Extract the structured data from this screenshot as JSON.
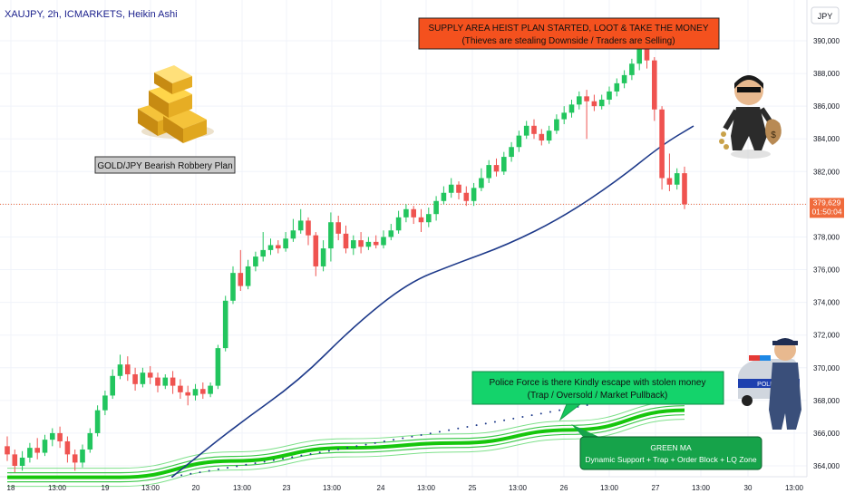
{
  "header": {
    "symbol_line": "XAUJPY, 2h, ICMARKETS, Heikin Ashi"
  },
  "price_axis": {
    "currency": "JPY",
    "ticks": [
      "390,000",
      "388,000",
      "386,000",
      "384,000",
      "382,000",
      "380,000",
      "378,000",
      "376,000",
      "374,000",
      "372,000",
      "370,000",
      "368,000",
      "366,000",
      "364,000"
    ],
    "last_price": "379,629",
    "countdown": "01:50:04"
  },
  "colors": {
    "up": "#26a69a",
    "up_bright": "#22c55e",
    "down": "#ef5350",
    "ma_blue": "#1e3a8a",
    "ma_green": "#16c60c",
    "last_price": "#f06b3c"
  },
  "annotations": {
    "supply": {
      "line1": "SUPPLY AREA HEIST PLAN STARTED, LOOT & TAKE THE MONEY",
      "line2": "(Thieves are stealing Downside / Traders are Selling)"
    },
    "title_box": "GOLD/JPY Bearish Robbery Plan",
    "police": {
      "line1": "Police Force is there Kindly escape with stolen money",
      "line2": "(Trap / Oversold / Market Pullback)"
    },
    "green_ma": {
      "line1": "GREEN MA",
      "line2": "Dynamic Support + Trap + Order Block + LQ Zone"
    }
  },
  "chart_data": {
    "type": "candlestick",
    "title": "XAUJPY, 2h, ICMARKETS, Heikin Ashi",
    "ylim": [
      363000,
      391000
    ],
    "x_ticks": [
      "18",
      "13:00",
      "19",
      "13:00",
      "20",
      "13:00",
      "23",
      "13:00",
      "24",
      "13:00",
      "25",
      "13:00",
      "26",
      "13:00",
      "27",
      "13:00",
      "30",
      "13:00"
    ],
    "candles": [
      {
        "o": 365200,
        "c": 364700,
        "h": 365800,
        "l": 364300
      },
      {
        "o": 364700,
        "c": 364000,
        "h": 365000,
        "l": 363600
      },
      {
        "o": 364000,
        "c": 364500,
        "h": 364900,
        "l": 363700
      },
      {
        "o": 364500,
        "c": 365100,
        "h": 365400,
        "l": 364200
      },
      {
        "o": 365100,
        "c": 364800,
        "h": 365700,
        "l": 364400
      },
      {
        "o": 364800,
        "c": 365600,
        "h": 365900,
        "l": 364600
      },
      {
        "o": 365600,
        "c": 366000,
        "h": 366300,
        "l": 365200
      },
      {
        "o": 366000,
        "c": 365500,
        "h": 366400,
        "l": 365100
      },
      {
        "o": 365500,
        "c": 364700,
        "h": 365800,
        "l": 364200
      },
      {
        "o": 364700,
        "c": 364200,
        "h": 365000,
        "l": 363700
      },
      {
        "o": 364200,
        "c": 365000,
        "h": 365300,
        "l": 363900
      },
      {
        "o": 365000,
        "c": 366000,
        "h": 366300,
        "l": 364800
      },
      {
        "o": 366000,
        "c": 367400,
        "h": 367700,
        "l": 365800
      },
      {
        "o": 367400,
        "c": 368300,
        "h": 368600,
        "l": 367100
      },
      {
        "o": 368300,
        "c": 369500,
        "h": 369900,
        "l": 368100
      },
      {
        "o": 369500,
        "c": 370200,
        "h": 370800,
        "l": 369300
      },
      {
        "o": 370200,
        "c": 369600,
        "h": 370700,
        "l": 369200
      },
      {
        "o": 369600,
        "c": 369000,
        "h": 370000,
        "l": 368600
      },
      {
        "o": 369000,
        "c": 369700,
        "h": 370000,
        "l": 368800
      },
      {
        "o": 369700,
        "c": 369400,
        "h": 370100,
        "l": 369000
      },
      {
        "o": 369400,
        "c": 368900,
        "h": 369700,
        "l": 368500
      },
      {
        "o": 368900,
        "c": 369400,
        "h": 369600,
        "l": 368700
      },
      {
        "o": 369400,
        "c": 368900,
        "h": 369800,
        "l": 368400
      },
      {
        "o": 368900,
        "c": 368500,
        "h": 369300,
        "l": 368100
      },
      {
        "o": 368500,
        "c": 368300,
        "h": 368900,
        "l": 367700
      },
      {
        "o": 368300,
        "c": 368700,
        "h": 369000,
        "l": 368000
      },
      {
        "o": 368700,
        "c": 368400,
        "h": 369100,
        "l": 368100
      },
      {
        "o": 368400,
        "c": 368900,
        "h": 369100,
        "l": 368200
      },
      {
        "o": 368900,
        "c": 371200,
        "h": 371400,
        "l": 368700
      },
      {
        "o": 371200,
        "c": 374100,
        "h": 374400,
        "l": 371000
      },
      {
        "o": 374100,
        "c": 375800,
        "h": 376200,
        "l": 373900
      },
      {
        "o": 375800,
        "c": 375000,
        "h": 377200,
        "l": 374700
      },
      {
        "o": 375000,
        "c": 376200,
        "h": 376600,
        "l": 374800
      },
      {
        "o": 376200,
        "c": 376800,
        "h": 377100,
        "l": 375900
      },
      {
        "o": 376800,
        "c": 377200,
        "h": 378300,
        "l": 376500
      },
      {
        "o": 377200,
        "c": 377500,
        "h": 377900,
        "l": 376900
      },
      {
        "o": 377500,
        "c": 377300,
        "h": 377800,
        "l": 377000
      },
      {
        "o": 377300,
        "c": 377900,
        "h": 378300,
        "l": 377100
      },
      {
        "o": 377900,
        "c": 378400,
        "h": 379100,
        "l": 377700
      },
      {
        "o": 378400,
        "c": 379000,
        "h": 379700,
        "l": 378200
      },
      {
        "o": 379000,
        "c": 378100,
        "h": 379200,
        "l": 377500
      },
      {
        "o": 378100,
        "c": 376200,
        "h": 378300,
        "l": 375600
      },
      {
        "o": 376200,
        "c": 377300,
        "h": 377800,
        "l": 375900
      },
      {
        "o": 377300,
        "c": 378900,
        "h": 379500,
        "l": 376500
      },
      {
        "o": 378900,
        "c": 378200,
        "h": 379300,
        "l": 377800
      },
      {
        "o": 378200,
        "c": 377300,
        "h": 378700,
        "l": 377000
      },
      {
        "o": 377300,
        "c": 377800,
        "h": 378100,
        "l": 376900
      },
      {
        "o": 377800,
        "c": 377400,
        "h": 378300,
        "l": 377000
      },
      {
        "o": 377400,
        "c": 377700,
        "h": 378000,
        "l": 377200
      },
      {
        "o": 377700,
        "c": 377500,
        "h": 378100,
        "l": 377300
      },
      {
        "o": 377500,
        "c": 378000,
        "h": 378400,
        "l": 377300
      },
      {
        "o": 378000,
        "c": 378400,
        "h": 378800,
        "l": 377800
      },
      {
        "o": 378400,
        "c": 379200,
        "h": 379600,
        "l": 378200
      },
      {
        "o": 379200,
        "c": 379700,
        "h": 380000,
        "l": 378900
      },
      {
        "o": 379700,
        "c": 379200,
        "h": 379900,
        "l": 378800
      },
      {
        "o": 379200,
        "c": 378900,
        "h": 379700,
        "l": 378300
      },
      {
        "o": 378900,
        "c": 379400,
        "h": 379800,
        "l": 378600
      },
      {
        "o": 379400,
        "c": 380200,
        "h": 380500,
        "l": 379000
      },
      {
        "o": 380200,
        "c": 380700,
        "h": 381100,
        "l": 380000
      },
      {
        "o": 380700,
        "c": 381200,
        "h": 381600,
        "l": 380400
      },
      {
        "o": 381200,
        "c": 380700,
        "h": 381400,
        "l": 380300
      },
      {
        "o": 380700,
        "c": 380200,
        "h": 381100,
        "l": 379900
      },
      {
        "o": 380200,
        "c": 381000,
        "h": 381300,
        "l": 379900
      },
      {
        "o": 381000,
        "c": 381600,
        "h": 382200,
        "l": 380800
      },
      {
        "o": 381600,
        "c": 382400,
        "h": 382700,
        "l": 381300
      },
      {
        "o": 382400,
        "c": 382000,
        "h": 382800,
        "l": 381700
      },
      {
        "o": 382000,
        "c": 382900,
        "h": 383200,
        "l": 381800
      },
      {
        "o": 382900,
        "c": 383500,
        "h": 383800,
        "l": 382600
      },
      {
        "o": 383500,
        "c": 384200,
        "h": 384500,
        "l": 383200
      },
      {
        "o": 384200,
        "c": 384800,
        "h": 385100,
        "l": 384000
      },
      {
        "o": 384800,
        "c": 384300,
        "h": 385200,
        "l": 384000
      },
      {
        "o": 384300,
        "c": 383900,
        "h": 384600,
        "l": 383600
      },
      {
        "o": 383900,
        "c": 384500,
        "h": 384800,
        "l": 383700
      },
      {
        "o": 384500,
        "c": 385200,
        "h": 385500,
        "l": 384300
      },
      {
        "o": 385200,
        "c": 385600,
        "h": 386000,
        "l": 384900
      },
      {
        "o": 385600,
        "c": 386100,
        "h": 386400,
        "l": 385300
      },
      {
        "o": 386100,
        "c": 386600,
        "h": 386900,
        "l": 385800
      },
      {
        "o": 386600,
        "c": 386300,
        "h": 387000,
        "l": 384000
      },
      {
        "o": 386300,
        "c": 386000,
        "h": 386700,
        "l": 385700
      },
      {
        "o": 386000,
        "c": 386400,
        "h": 386700,
        "l": 385800
      },
      {
        "o": 386400,
        "c": 386900,
        "h": 387200,
        "l": 386100
      },
      {
        "o": 386900,
        "c": 387400,
        "h": 387700,
        "l": 386600
      },
      {
        "o": 387400,
        "c": 387900,
        "h": 388200,
        "l": 387100
      },
      {
        "o": 387900,
        "c": 388600,
        "h": 388900,
        "l": 387600
      },
      {
        "o": 388600,
        "c": 389600,
        "h": 390000,
        "l": 388200
      },
      {
        "o": 389600,
        "c": 388800,
        "h": 390200,
        "l": 388300
      },
      {
        "o": 388800,
        "c": 385800,
        "h": 389000,
        "l": 385100
      },
      {
        "o": 385800,
        "c": 381600,
        "h": 386000,
        "l": 380900
      },
      {
        "o": 381600,
        "c": 381200,
        "h": 383100,
        "l": 380800
      },
      {
        "o": 381200,
        "c": 381900,
        "h": 382200,
        "l": 380900
      },
      {
        "o": 381900,
        "c": 380000,
        "h": 382300,
        "l": 379700
      }
    ],
    "series": [
      {
        "name": "",
        "color": "#1e3a8a",
        "x": [
          0,
          44,
          55,
          68,
          85,
          90
        ],
        "y": [
          362500,
          374000,
          378000,
          381000,
          383800,
          385000
        ]
      },
      {
        "name": "",
        "color": "#16c60c",
        "x": [
          0,
          15,
          30,
          45,
          60,
          75,
          90
        ],
        "y": [
          363300,
          363300,
          364300,
          365100,
          365400,
          366200,
          367400
        ]
      }
    ]
  }
}
